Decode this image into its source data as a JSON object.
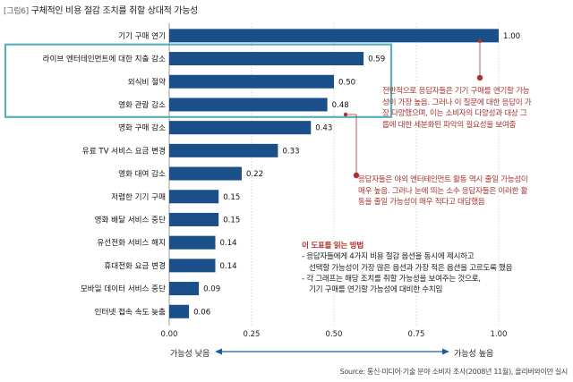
{
  "figure": {
    "tag": "[그림6]",
    "title": "구체적인 비용 절감 조치를 취할 상대적 가능성"
  },
  "chart_data": {
    "type": "bar",
    "orientation": "horizontal",
    "categories": [
      "기기 구매 연기",
      "라이브 엔터테인먼트에 대한 지출 감소",
      "외식비 절약",
      "영화 관람 감소",
      "영화 구매 감소",
      "유료 TV 서비스 요금 변경",
      "영화 대여 감소",
      "저렴한 기기 구매",
      "영화 배달 서비스 중단",
      "유선전화 서비스 해지",
      "휴대전화 요금 변경",
      "모바일 데이터 서비스 중단",
      "인터넷 접속 속도 늦춤"
    ],
    "values": [
      1.0,
      0.59,
      0.5,
      0.48,
      0.43,
      0.33,
      0.22,
      0.15,
      0.15,
      0.14,
      0.14,
      0.09,
      0.06
    ],
    "value_labels": [
      "1.00",
      "0.59",
      "0.50",
      "0.48",
      "0.43",
      "0.33",
      "0.22",
      "0.15",
      "0.15",
      "0.14",
      "0.14",
      "0.09",
      "0.06"
    ],
    "xlim": [
      0,
      1.0
    ],
    "xticks": [
      "0.00",
      "0.25",
      "0.50",
      "0.75",
      "1.00"
    ],
    "xtick_values": [
      0,
      0.25,
      0.5,
      0.75,
      1.0
    ],
    "grid": true,
    "highlighted_categories": [
      "라이브 엔터테인먼트에 대한 지출 감소",
      "외식비 절약",
      "영화 관람 감소"
    ],
    "colors": {
      "bar": "#1a4f8a",
      "highlight_box": "#5bb0bb",
      "annotation": "#b2322b",
      "grid": "#bdbdbd"
    }
  },
  "annotations": {
    "top_note": [
      "전반적으로 응답자들은 기기 구매를 연기할 가능",
      "성이 가장 높음. 그러나 이 질문에 대한 응답이 가",
      "장 다양했으며, 이는 소비자의 다양성과 대상 그",
      "룹에 대한 세분화된 파악의 필요성을 보여줌"
    ],
    "mid_note": [
      "응답자들은 야외 엔터테인먼트 활동 역시 줄일 가능성이",
      "매우 높음. 그러나 눈에 띄는 소수 응답자들은 이러한 활",
      "동을 줄일 가능성이 매우 적다고 대답했음"
    ]
  },
  "how_to_read": {
    "title": "이 도표를 읽는 방법",
    "lines": [
      "- 응답자들에게 4가지 비용 절감 옵션을 동시에 제시하고",
      "  선택할 가능성이 가장 많은 옵션과 가장 적은 옵션을 고르도록 했음",
      "- 각 그래프는 해당 조치를 취할 가능성을 보여주는 것으로,",
      "  기기 구매를 연기할 가능성에 대비한 수치임"
    ]
  },
  "axis_notes": {
    "low": "가능성 낮음",
    "high": "가능성 높음"
  },
  "source": "Source: 통신·미디어·기술 분야 소비자 조사(2008년 11월), 올리버와이만 실시"
}
